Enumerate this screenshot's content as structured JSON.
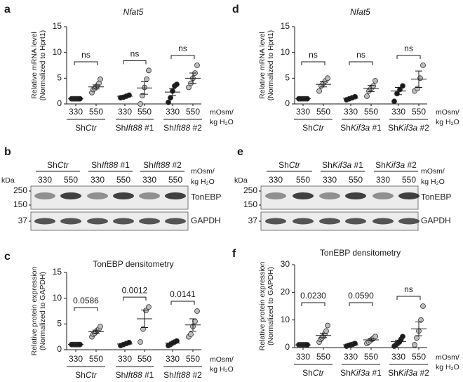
{
  "chart_data": [
    {
      "panel": "a",
      "type": "dotplot",
      "title": "Nfat5",
      "title_italic": true,
      "y_label": [
        "Relative mRNA level",
        "(Normalized to Hprt1)"
      ],
      "categories": [
        "330",
        "550",
        "330",
        "550",
        "330",
        "550"
      ],
      "groups": [
        "ShCtr",
        "ShIft88 #1",
        "ShIft88 #2"
      ],
      "unit_label": [
        "mOsm/",
        "kg H₂O"
      ],
      "comparisons": [
        "ns",
        "ns",
        "ns"
      ],
      "points": [
        [
          1,
          1,
          1,
          1,
          1,
          1,
          1
        ],
        [
          2.2,
          2.8,
          3.0,
          3.3,
          3.6,
          4.0,
          4.8
        ],
        [
          1.2,
          1.3,
          1.5,
          1.7
        ],
        [
          0,
          1.6,
          3.2,
          4.8,
          6.5
        ],
        [
          0.3,
          1.2,
          2.5,
          3.5,
          3.8
        ],
        [
          3.2,
          4.0,
          5.0,
          6.0,
          7.5
        ]
      ],
      "mean": [
        1,
        3.3,
        1.5,
        3.1,
        2.3,
        5.0
      ],
      "sem": [
        0,
        0.4,
        0.1,
        1.2,
        0.7,
        1.0
      ],
      "colors": [
        "#1a1a1a",
        "#bdbdbd"
      ],
      "ylim": [
        0,
        15
      ],
      "yticks": [
        0,
        5,
        10,
        15
      ]
    },
    {
      "panel": "c",
      "type": "dotplot",
      "title": "TonEBP densitometry",
      "title_italic": false,
      "y_label": [
        "Relative protein expression",
        "(Normalized to GAPDH)"
      ],
      "categories": [
        "330",
        "550",
        "330",
        "550",
        "330",
        "550"
      ],
      "groups": [
        "ShCtr",
        "ShIft88 #1",
        "ShIft88 #2"
      ],
      "unit_label": [
        "mOsm/",
        "kg H₂O"
      ],
      "comparisons": [
        "0.0586",
        "0.0012",
        "0.0141"
      ],
      "points": [
        [
          1,
          1,
          1,
          1,
          1,
          1,
          1
        ],
        [
          2.5,
          3.0,
          3.2,
          3.5,
          3.8,
          4.0,
          4.5
        ],
        [
          0.8,
          1.0,
          1.2,
          1.4
        ],
        [
          1.5,
          4.0,
          7.6,
          8.3
        ],
        [
          0.8,
          1.0,
          1.3,
          1.5,
          1.7
        ],
        [
          2.5,
          3.0,
          4.5,
          5.5,
          7.5
        ]
      ],
      "mean": [
        1,
        3.5,
        1.1,
        6.0,
        1.3,
        4.8
      ],
      "sem": [
        0,
        0.3,
        0.15,
        1.7,
        0.2,
        1.2
      ],
      "colors": [
        "#1a1a1a",
        "#bdbdbd"
      ],
      "ylim": [
        0,
        15
      ],
      "yticks": [
        0,
        5,
        10,
        15
      ]
    },
    {
      "panel": "d",
      "type": "dotplot",
      "title": "Nfat5",
      "title_italic": true,
      "y_label": [
        "Relative mRNA level",
        "(Normalized to Hprt1)"
      ],
      "categories": [
        "330",
        "550",
        "330",
        "550",
        "330",
        "550"
      ],
      "groups": [
        "ShCtr",
        "ShKif3a #1",
        "ShKif3a #2"
      ],
      "unit_label": [
        "mOsm/",
        "kg H₂O"
      ],
      "comparisons": [
        "ns",
        "ns",
        "ns"
      ],
      "points": [
        [
          1,
          1,
          1,
          1,
          1
        ],
        [
          2.5,
          3.5,
          4.0,
          4.5,
          5.0
        ],
        [
          0.8,
          1.0,
          1.2,
          1.4
        ],
        [
          1.5,
          2.5,
          3.0,
          3.5,
          4.5
        ],
        [
          0.5,
          2.0,
          2.8,
          3.5
        ],
        [
          2.5,
          3.0,
          5.0,
          7.5
        ]
      ],
      "mean": [
        1,
        3.8,
        1.1,
        3.0,
        2.5,
        4.8
      ],
      "sem": [
        0,
        0.5,
        0.15,
        0.6,
        0.7,
        1.6
      ],
      "colors": [
        "#1a1a1a",
        "#bdbdbd"
      ],
      "ylim": [
        0,
        15
      ],
      "yticks": [
        0,
        5,
        10,
        15
      ]
    },
    {
      "panel": "f",
      "type": "dotplot",
      "title": "TonEBP densitometry",
      "title_italic": false,
      "y_label": [
        "Relative protein expression",
        "(Normalized to GAPDH)"
      ],
      "categories": [
        "330",
        "550",
        "330",
        "550",
        "330",
        "550"
      ],
      "groups": [
        "ShCtr",
        "ShKif3a #1",
        "ShKif3a #2"
      ],
      "unit_label": [
        "mOsm/",
        "kg H₂O"
      ],
      "comparisons": [
        "0.0230",
        "0.0590",
        "ns"
      ],
      "points": [
        [
          1,
          1,
          1,
          1,
          1,
          1,
          1,
          1
        ],
        [
          2,
          3,
          3.5,
          4,
          5,
          6,
          8
        ],
        [
          0.5,
          0.8,
          1.0,
          1.2,
          1.5
        ],
        [
          1.5,
          2,
          2.5,
          3,
          3.5,
          4
        ],
        [
          0.5,
          1,
          1.5,
          2,
          3,
          4
        ],
        [
          1,
          3.5,
          6,
          10,
          15
        ]
      ],
      "mean": [
        1,
        4.4,
        1.0,
        2.8,
        2.2,
        6.8
      ],
      "sem": [
        0,
        0.8,
        0.2,
        0.4,
        0.5,
        2.5
      ],
      "colors": [
        "#1a1a1a",
        "#bdbdbd"
      ],
      "ylim": [
        0,
        30
      ],
      "yticks": [
        0,
        10,
        20,
        30
      ]
    }
  ],
  "blots": [
    {
      "panel": "b",
      "kda_label": "kDa",
      "groups": [
        "ShCtr",
        "ShIft88 #1",
        "ShIft88 #2"
      ],
      "lanes": [
        "330",
        "550",
        "330",
        "550",
        "330",
        "550"
      ],
      "unit_label": [
        "mOsm/",
        "kg H₂O"
      ],
      "rows": [
        {
          "label": "TonEBP",
          "markers": [
            250,
            150
          ]
        },
        {
          "label": "GAPDH",
          "markers": [
            37
          ]
        }
      ]
    },
    {
      "panel": "e",
      "kda_label": "kDa",
      "groups": [
        "ShCtr",
        "ShKif3a #1",
        "ShKif3a #2"
      ],
      "lanes": [
        "330",
        "550",
        "330",
        "550",
        "330",
        "550"
      ],
      "unit_label": [
        "mOsm/",
        "kg H₂O"
      ],
      "rows": [
        {
          "label": "TonEBP",
          "markers": [
            250,
            150
          ]
        },
        {
          "label": "GAPDH",
          "markers": [
            37
          ]
        }
      ]
    }
  ]
}
